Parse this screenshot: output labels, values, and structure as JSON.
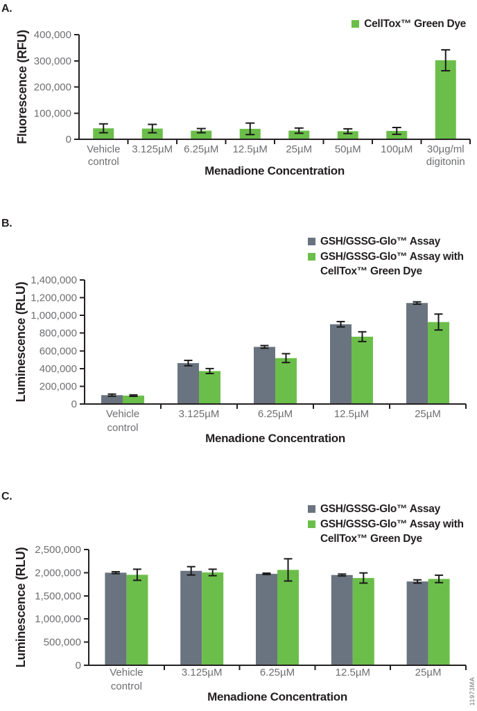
{
  "watermark": "11973MA",
  "colors": {
    "green_series": "#6cbe4a",
    "gray_series": "#6a7480",
    "axis": "#231f20",
    "tick_label": "#6d6e71",
    "error_bar": "#1a1a1a"
  },
  "chart_data": [
    {
      "panel": "A.",
      "type": "bar",
      "title": "",
      "xlabel": "Menadione Concentration",
      "ylabel": "Fluorescence (RFU)",
      "ylim": [
        0,
        400000
      ],
      "ytick_step": 100000,
      "grid": false,
      "legend_position": "top-right",
      "categories": [
        "Vehicle\ncontrol",
        "3.125µM",
        "6.25µM",
        "12.5µM",
        "25µM",
        "50µM",
        "100µM",
        "30µg/ml\ndigitonin"
      ],
      "series": [
        {
          "name": "CellTox™ Green Dye",
          "color": "#6cbe4a",
          "values": [
            42000,
            41000,
            33000,
            40000,
            33000,
            31000,
            32000,
            302000
          ],
          "errors": [
            17000,
            16000,
            8000,
            22000,
            10000,
            9000,
            13000,
            40000
          ]
        }
      ]
    },
    {
      "panel": "B.",
      "type": "bar",
      "title": "",
      "xlabel": "Menadione Concentration",
      "ylabel": "Luminescence (RLU)",
      "ylim": [
        0,
        1400000
      ],
      "ytick_step": 200000,
      "grid": false,
      "legend_position": "top-right",
      "categories": [
        "Vehicle\ncontrol",
        "3.125µM",
        "6.25µM",
        "12.5µM",
        "25µM"
      ],
      "series": [
        {
          "name": "GSH/GSSG-Glo™ Assay",
          "color": "#6a7480",
          "values": [
            100000,
            462000,
            645000,
            900000,
            1140000
          ],
          "errors": [
            12000,
            30000,
            15000,
            30000,
            13000
          ]
        },
        {
          "name": "GSH/GSSG-Glo™ Assay with CellTox™ Green Dye",
          "color": "#6cbe4a",
          "values": [
            95000,
            372000,
            518000,
            760000,
            925000
          ],
          "errors": [
            8000,
            28000,
            50000,
            55000,
            90000
          ]
        }
      ]
    },
    {
      "panel": "C.",
      "type": "bar",
      "title": "",
      "xlabel": "Menadione Concentration",
      "ylabel": "Luminescence (RLU)",
      "ylim": [
        0,
        2500000
      ],
      "ytick_step": 500000,
      "grid": false,
      "legend_position": "top-right",
      "categories": [
        "Vehicle\ncontrol",
        "3.125µM",
        "6.25µM",
        "12.5µM",
        "25µM"
      ],
      "series": [
        {
          "name": "GSH/GSSG-Glo™ Assay",
          "color": "#6a7480",
          "values": [
            2000000,
            2040000,
            1975000,
            1950000,
            1810000
          ],
          "errors": [
            20000,
            90000,
            15000,
            20000,
            35000
          ]
        },
        {
          "name": "GSH/GSSG-Glo™ Assay with CellTox™ Green Dye",
          "color": "#6cbe4a",
          "values": [
            1955000,
            2005000,
            2060000,
            1885000,
            1865000
          ],
          "errors": [
            120000,
            70000,
            240000,
            110000,
            80000
          ]
        }
      ]
    }
  ]
}
